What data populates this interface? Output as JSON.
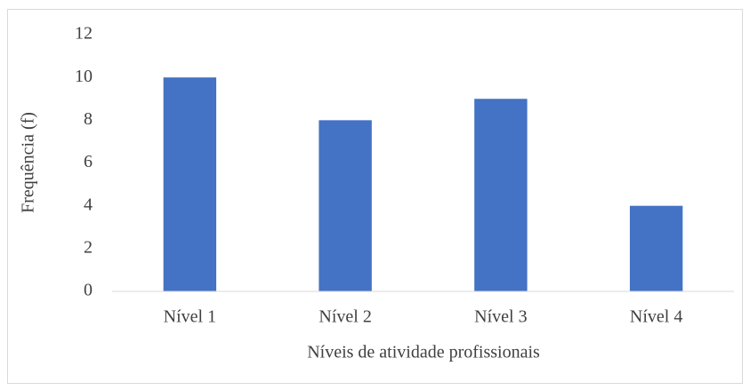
{
  "chart_data": {
    "type": "bar",
    "categories": [
      "Nível 1",
      "Nível 2",
      "Nível 3",
      "Nível 4"
    ],
    "values": [
      10,
      8,
      9,
      4
    ],
    "color": "#4472c4",
    "ylim": [
      0,
      12
    ],
    "yticks": [
      0,
      2,
      4,
      6,
      8,
      10,
      12
    ],
    "grid": false,
    "x_label": "Níveis de atividade profissionais",
    "y_label": "Frequência (f)"
  }
}
